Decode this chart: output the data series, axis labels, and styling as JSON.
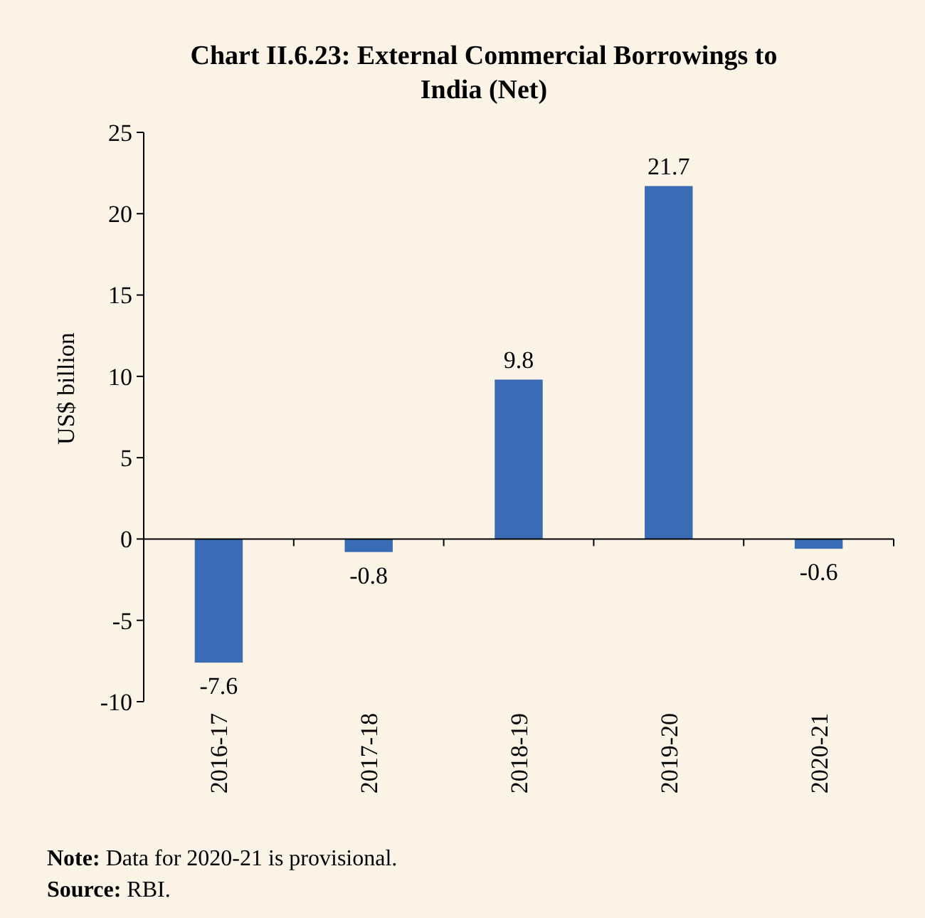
{
  "chart_data": {
    "type": "bar",
    "title": "Chart II.6.23: External Commercial Borrowings to India (Net)",
    "ylabel": "US$ billion",
    "categories": [
      "2016-17",
      "2017-18",
      "2018-19",
      "2019-20",
      "2020-21"
    ],
    "values": [
      -7.6,
      -0.8,
      9.8,
      21.7,
      -0.6
    ],
    "color": "#3a6cb6",
    "ylim": [
      -10,
      25
    ],
    "yticks": [
      -10,
      -5,
      0,
      5,
      10,
      15,
      20,
      25
    ],
    "data_labels": true,
    "annotations": [
      "Note: Data for 2020-21 is provisional.",
      "Source: RBI."
    ]
  }
}
